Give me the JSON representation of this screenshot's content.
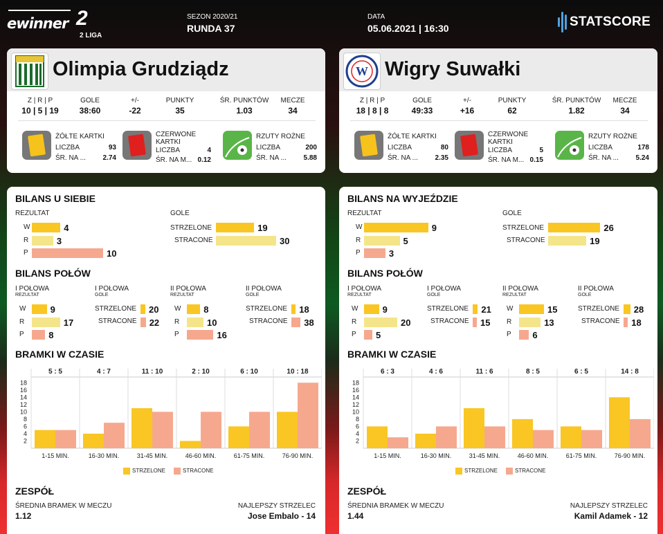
{
  "header": {
    "brand": "ewinner",
    "league_num": "2",
    "league_txt": "2 LIGA",
    "season_label": "SEZON 2020/21",
    "round": "RUNDA 37",
    "date_label": "DATA",
    "date": "05.06.2021 | 16:30",
    "provider": "STATSCORE"
  },
  "labels": {
    "wdl": "Z | R | P",
    "goals": "GOLE",
    "diff": "+/-",
    "points": "PUNKTY",
    "avg_points": "ŚR. PUNKTÓW",
    "matches": "MECZE",
    "yellow": "ŻÓŁTE KARTKI",
    "red": "CZERWONE KARTKI",
    "corners": "RZUTY ROŻNE",
    "count": "LICZBA",
    "avg_short": "ŚR. NA ...",
    "avg_short2": "ŚR. NA M...",
    "result": "REZULTAT",
    "goals2": "GOLE",
    "W": "W",
    "R": "R",
    "P": "P",
    "scored": "STRZELONE",
    "conceded": "STRACONE",
    "halves": "BILANS POŁÓW",
    "h1": "I POŁOWA",
    "h2": "II POŁOWA",
    "sub_result": "REZULTAT",
    "sub_goals": "GOLE",
    "time_goals": "BRAMKI W CZASIE",
    "team": "ZESPÓŁ",
    "avg_goals": "ŚREDNIA BRAMEK W MECZU",
    "top_scorer": "NAJLEPSZY STRZELEC",
    "legend_scored": "STRZELONE",
    "legend_conceded": "STRACONE"
  },
  "colors": {
    "scored": "#f9c623",
    "conceded": "#f6a88e",
    "draw": "#f5e58a"
  },
  "home": {
    "name": "Olimpia Grudziądz",
    "crest_text": "GKS OLIMPIA GRUDZIĄDZ",
    "wdl": "10 | 5 | 19",
    "goals": "38:60",
    "diff": "-22",
    "points": "35",
    "avg_points": "1.03",
    "matches": "34",
    "yellow": {
      "count": "93",
      "avg": "2.74"
    },
    "red": {
      "count": "4",
      "avg": "0.12"
    },
    "corners": {
      "count": "200",
      "avg": "5.88"
    },
    "balance_title": "BILANS U SIEBIE",
    "balance": {
      "W": 4,
      "R": 3,
      "P": 10,
      "scored": 19,
      "conceded": 30
    },
    "halves": {
      "h1_result": {
        "W": 9,
        "R": 17,
        "P": 8
      },
      "h1_goals": {
        "scored": 20,
        "conceded": 22
      },
      "h2_result": {
        "W": 8,
        "R": 10,
        "P": 16
      },
      "h2_goals": {
        "scored": 18,
        "conceded": 38
      }
    },
    "avg_goals": "1.12",
    "top_scorer": "Jose Embalo - 14"
  },
  "away": {
    "name": "Wigry Suwałki",
    "crest_text": "WIGRY",
    "wdl": "18 | 8 | 8",
    "goals": "49:33",
    "diff": "+16",
    "points": "62",
    "avg_points": "1.82",
    "matches": "34",
    "yellow": {
      "count": "80",
      "avg": "2.35"
    },
    "red": {
      "count": "5",
      "avg": "0.15"
    },
    "corners": {
      "count": "178",
      "avg": "5.24"
    },
    "balance_title": "BILANS NA WYJEŹDZIE",
    "balance": {
      "W": 9,
      "R": 5,
      "P": 3,
      "scored": 26,
      "conceded": 19
    },
    "halves": {
      "h1_result": {
        "W": 9,
        "R": 20,
        "P": 5
      },
      "h1_goals": {
        "scored": 21,
        "conceded": 15
      },
      "h2_result": {
        "W": 15,
        "R": 13,
        "P": 6
      },
      "h2_goals": {
        "scored": 28,
        "conceded": 18
      }
    },
    "avg_goals": "1.44",
    "top_scorer": "Kamil Adamek - 12"
  },
  "chart_data": [
    {
      "type": "bar",
      "title": "BRAMKI W CZASIE",
      "categories": [
        "1-15 MIN.",
        "16-30 MIN.",
        "31-45 MIN.",
        "46-60 MIN.",
        "61-75 MIN.",
        "76-90 MIN."
      ],
      "headers": [
        "5 : 5",
        "4 : 7",
        "11 : 10",
        "2 : 10",
        "6 : 10",
        "10 : 18"
      ],
      "series": [
        {
          "name": "STRZELONE",
          "values": [
            5,
            4,
            11,
            2,
            6,
            10
          ]
        },
        {
          "name": "STRACONE",
          "values": [
            5,
            7,
            10,
            10,
            10,
            18
          ]
        }
      ],
      "yticks": [
        2,
        4,
        6,
        8,
        10,
        12,
        14,
        16,
        18
      ],
      "ylim": [
        0,
        19
      ]
    },
    {
      "type": "bar",
      "title": "BRAMKI W CZASIE",
      "categories": [
        "1-15 MIN.",
        "16-30 MIN.",
        "31-45 MIN.",
        "46-60 MIN.",
        "61-75 MIN.",
        "76-90 MIN."
      ],
      "headers": [
        "6 : 3",
        "4 : 6",
        "11 : 6",
        "8 : 5",
        "6 : 5",
        "14 : 8"
      ],
      "series": [
        {
          "name": "STRZELONE",
          "values": [
            6,
            4,
            11,
            8,
            6,
            14
          ]
        },
        {
          "name": "STRACONE",
          "values": [
            3,
            6,
            6,
            5,
            5,
            8
          ]
        }
      ],
      "yticks": [
        2,
        4,
        6,
        8,
        10,
        12,
        14,
        16,
        18
      ],
      "ylim": [
        0,
        19
      ]
    }
  ]
}
